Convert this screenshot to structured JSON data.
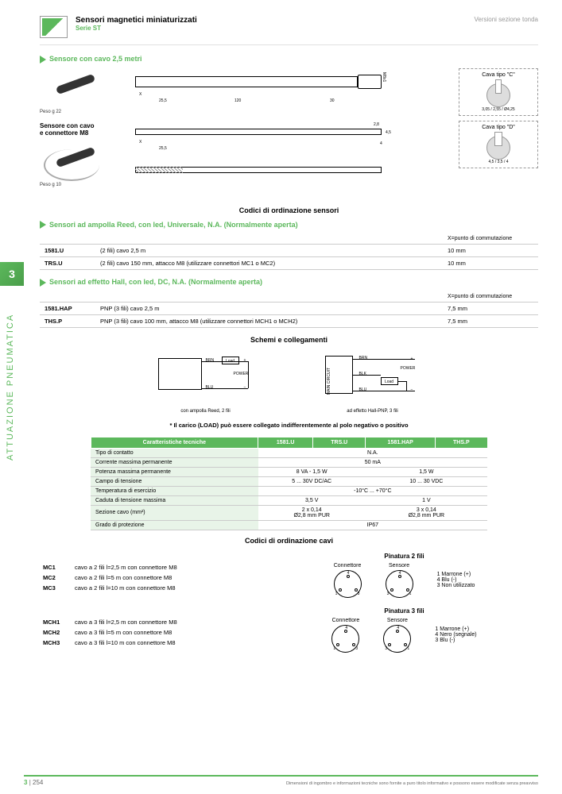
{
  "header": {
    "title": "Sensori magnetici miniaturizzati",
    "subtitle": "Serie ST",
    "right": "Versioni sezione tonda",
    "logo": "PNEUMAX"
  },
  "sec1": {
    "title": "Sensore con cavo 2,5 metri",
    "weight": "Peso g 22"
  },
  "sec2": {
    "title1": "Sensore con cavo",
    "title2": "e connettore M8",
    "weight": "Peso g 10"
  },
  "cava": {
    "c": "Cava tipo \"C\"",
    "d": "Cava tipo \"D\"",
    "dim_c1": "3,05",
    "dim_c2": "2,55",
    "dim_c3": "Ø4,25",
    "dim_d1": "4,5",
    "dim_d2": "3,5",
    "dim_d3": "4"
  },
  "dims": {
    "d1": "25,5",
    "d2": "120",
    "d3": "30",
    "d4": "M8x1",
    "d5": "2,8",
    "d6": "4,5",
    "d7": "4",
    "x": "X"
  },
  "ordering_title": "Codici di ordinazione sensori",
  "reed": {
    "title": "Sensori ad ampolla Reed, con led, Universale, N.A. (Normalmente aperta)",
    "note": "X=punto di commutazione",
    "rows": [
      {
        "code": "1581.U",
        "desc": "(2 fili) cavo 2,5 m",
        "val": "10 mm"
      },
      {
        "code": "TRS.U",
        "desc": "(2 fili) cavo 150 mm, attacco M8 (utilizzare connettori MC1 o MC2)",
        "val": "10 mm"
      }
    ]
  },
  "hall": {
    "title": "Sensori ad effetto Hall, con led, DC, N.A. (Normalmente aperta)",
    "note": "X=punto di commutazione",
    "rows": [
      {
        "code": "1581.HAP",
        "desc": "PNP (3 fili) cavo 2,5 m",
        "val": "7,5 mm"
      },
      {
        "code": "THS.P",
        "desc": "PNP (3 fili) cavo 100 mm, attacco M8 (utilizzare connettori MCH1 o MCH2)",
        "val": "7,5 mm"
      }
    ]
  },
  "sidebar": {
    "num": "3",
    "text": "ATTUAZIONE PNEUMATICA"
  },
  "schemi": {
    "title": "Schemi e collegamenti",
    "cap1": "con ampolla Reed, 2 fili",
    "cap2": "ad effetto Hall-PNP, 3 fili",
    "brn": "BRN",
    "blu": "BLU",
    "blk": "BLK",
    "load": "Load",
    "power": "POWER",
    "main": "MAIN CIRCUIT"
  },
  "footnote": "* Il carico (LOAD) può essere collegato indifferentemente al polo negativo o positivo",
  "spec": {
    "headers": [
      "Caratteristiche tecniche",
      "1581.U",
      "TRS.U",
      "1581.HAP",
      "THS.P"
    ],
    "rows": [
      {
        "label": "Tipo di contatto",
        "cells": [
          {
            "text": "N.A.",
            "span": 4
          }
        ]
      },
      {
        "label": "Corrente massima permanente",
        "cells": [
          {
            "text": "50 mA",
            "span": 4
          }
        ]
      },
      {
        "label": "Potenza massima permanente",
        "cells": [
          {
            "text": "8 VA - 1,5 W",
            "span": 2
          },
          {
            "text": "1,5 W",
            "span": 2
          }
        ]
      },
      {
        "label": "Campo di tensione",
        "cells": [
          {
            "text": "5 ... 30V DC/AC",
            "span": 2
          },
          {
            "text": "10 ... 30 VDC",
            "span": 2
          }
        ]
      },
      {
        "label": "Temperatura di esercizio",
        "cells": [
          {
            "text": "-10°C ... +70°C",
            "span": 4
          }
        ]
      },
      {
        "label": "Caduta di tensione massima",
        "cells": [
          {
            "text": "3,5 V",
            "span": 2
          },
          {
            "text": "1 V",
            "span": 2
          }
        ]
      },
      {
        "label": "Sezione cavo (mm²)",
        "cells": [
          {
            "text": "2 x 0,14\nØ2,8 mm PUR",
            "span": 2
          },
          {
            "text": "3 x 0,14\nØ2,8 mm PUR",
            "span": 2
          }
        ]
      },
      {
        "label": "Grado di protezione",
        "cells": [
          {
            "text": "IP67",
            "span": 4
          }
        ]
      }
    ]
  },
  "cavi": {
    "title": "Codici di ordinazione cavi",
    "rows2": [
      {
        "code": "MC1",
        "desc": "cavo a 2 fili l=2,5 m con connettore M8"
      },
      {
        "code": "MC2",
        "desc": "cavo a 2 fili l=5 m con connettore M8"
      },
      {
        "code": "MC3",
        "desc": "cavo a 2 fili l=10 m con connettore M8"
      }
    ],
    "rows3": [
      {
        "code": "MCH1",
        "desc": "cavo a 3 fili l=2,5 m con connettore M8"
      },
      {
        "code": "MCH2",
        "desc": "cavo a 3 fili l=5 m con connettore M8"
      },
      {
        "code": "MCH3",
        "desc": "cavo a 3 fili l=10 m con connettore M8"
      }
    ],
    "pin2": {
      "title": "Pinatura 2 fili",
      "conn": "Connettore",
      "sens": "Sensore",
      "legend": [
        "1 Marrone (+)",
        "4 Blu (-)",
        "3 Non utilizzato"
      ]
    },
    "pin3": {
      "title": "Pinatura 3 fili",
      "conn": "Connettore",
      "sens": "Sensore",
      "legend": [
        "1 Marrone (+)",
        "4 Nero (segnale)",
        "3 Blu (-)"
      ]
    }
  },
  "footer": {
    "pagenum": "3",
    "sep": "|",
    "page": "254",
    "disclaimer": "Dimensioni di ingombro e informazioni tecniche sono fornite a puro titolo informativo e possono essere modificate senza preavviso"
  }
}
